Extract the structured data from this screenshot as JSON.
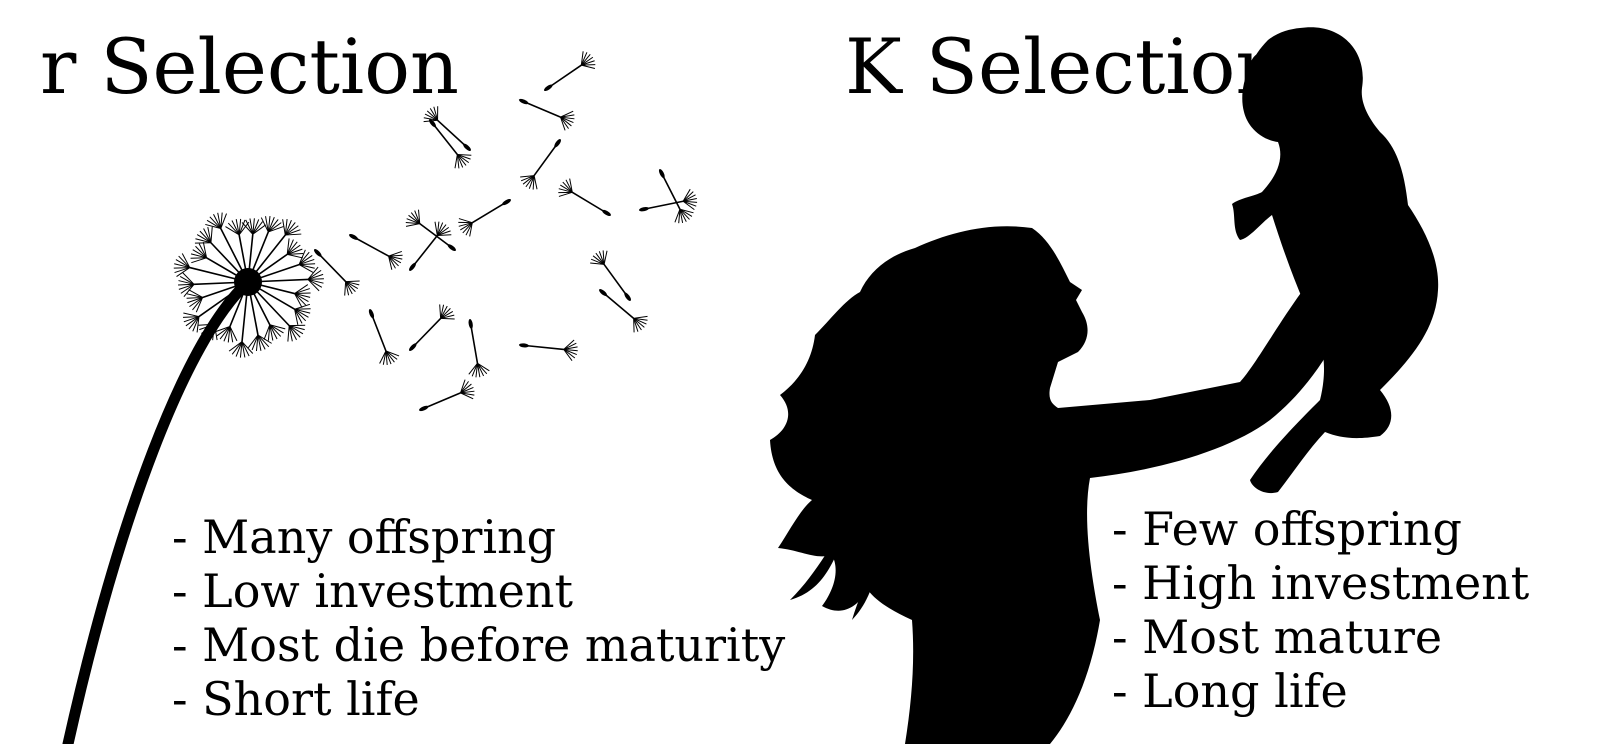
{
  "r_selection": {
    "title": "r Selection",
    "traits": [
      "- Many offspring",
      "- Low investment",
      "- Most die before maturity",
      "- Short life"
    ],
    "illustration": "dandelion-icon"
  },
  "k_selection": {
    "title": "K Selection",
    "traits": [
      "- Few offspring",
      "- High investment",
      "- Most mature",
      "- Long life"
    ],
    "illustration": "mother-lifting-baby-icon"
  },
  "colors": {
    "background": "#ffffff",
    "ink": "#000000"
  }
}
